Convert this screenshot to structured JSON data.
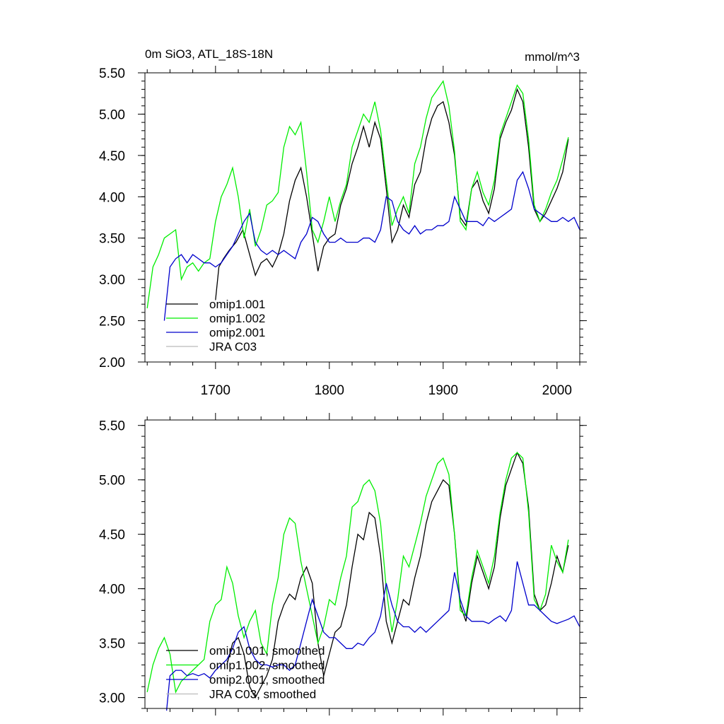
{
  "chart_data": [
    {
      "type": "line",
      "title": "0m SiO3, ATL_18S-18N",
      "units": "mmol/m^3",
      "xlim": [
        1638,
        2020
      ],
      "ylim": [
        2.0,
        5.5
      ],
      "xticks": [
        1700,
        1800,
        1900,
        2000
      ],
      "xtick_labels": [
        "1700",
        "1800",
        "1900",
        "2000"
      ],
      "yticks": [
        2.0,
        2.5,
        3.0,
        3.5,
        4.0,
        4.5,
        5.0,
        5.5
      ],
      "ytick_labels": [
        "2.00",
        "2.50",
        "3.00",
        "3.50",
        "4.00",
        "4.50",
        "5.00",
        "5.50"
      ],
      "legend_position": "lower-left",
      "series": [
        {
          "name": "omip1.001",
          "color": "#000000",
          "x": [
            1700,
            1703,
            1707,
            1712,
            1718,
            1724,
            1730,
            1735,
            1740,
            1745,
            1750,
            1755,
            1760,
            1765,
            1770,
            1775,
            1780,
            1785,
            1790,
            1795,
            1800,
            1805,
            1810,
            1815,
            1820,
            1825,
            1830,
            1835,
            1840,
            1845,
            1850,
            1855,
            1860,
            1865,
            1870,
            1875,
            1880,
            1885,
            1890,
            1895,
            1900,
            1905,
            1910,
            1915,
            1920,
            1925,
            1930,
            1935,
            1940,
            1945,
            1950,
            1955,
            1960,
            1965,
            1970,
            1975,
            1980,
            1985,
            1990,
            1995,
            2000,
            2005,
            2010
          ],
          "y": [
            2.75,
            3.15,
            3.25,
            3.35,
            3.45,
            3.6,
            3.3,
            3.05,
            3.2,
            3.25,
            3.15,
            3.3,
            3.55,
            3.95,
            4.2,
            4.35,
            4.0,
            3.55,
            3.1,
            3.4,
            3.5,
            3.55,
            3.9,
            4.1,
            4.4,
            4.6,
            4.85,
            4.6,
            4.9,
            4.7,
            4.1,
            3.45,
            3.6,
            3.9,
            3.75,
            4.15,
            4.3,
            4.7,
            4.95,
            5.1,
            5.15,
            4.9,
            4.5,
            3.75,
            3.65,
            4.1,
            4.2,
            3.95,
            3.8,
            4.1,
            4.7,
            4.9,
            5.05,
            5.3,
            5.15,
            4.6,
            3.85,
            3.7,
            3.8,
            3.95,
            4.1,
            4.3,
            4.7
          ]
        },
        {
          "name": "omip1.002",
          "color": "#00ee00",
          "x": [
            1640,
            1645,
            1650,
            1655,
            1660,
            1665,
            1670,
            1675,
            1680,
            1685,
            1690,
            1695,
            1700,
            1705,
            1710,
            1715,
            1720,
            1725,
            1730,
            1735,
            1740,
            1745,
            1750,
            1755,
            1760,
            1765,
            1770,
            1775,
            1780,
            1785,
            1790,
            1795,
            1800,
            1805,
            1810,
            1815,
            1820,
            1825,
            1830,
            1835,
            1840,
            1845,
            1850,
            1855,
            1860,
            1865,
            1870,
            1875,
            1880,
            1885,
            1890,
            1895,
            1900,
            1905,
            1910,
            1915,
            1920,
            1925,
            1930,
            1935,
            1940,
            1945,
            1950,
            1955,
            1960,
            1965,
            1970,
            1975,
            1980,
            1985,
            1990,
            1995,
            2000,
            2005,
            2010
          ],
          "y": [
            2.65,
            3.15,
            3.3,
            3.5,
            3.55,
            3.6,
            3.0,
            3.15,
            3.2,
            3.1,
            3.2,
            3.25,
            3.7,
            4.0,
            4.15,
            4.35,
            4.0,
            3.5,
            3.85,
            3.4,
            3.6,
            3.9,
            3.95,
            4.05,
            4.6,
            4.85,
            4.75,
            4.9,
            4.3,
            3.6,
            3.45,
            3.7,
            4.0,
            3.7,
            3.95,
            4.15,
            4.6,
            4.8,
            5.0,
            4.9,
            5.15,
            4.8,
            4.2,
            3.65,
            3.85,
            4.0,
            3.8,
            4.4,
            4.6,
            4.95,
            5.2,
            5.3,
            5.4,
            5.1,
            4.55,
            3.7,
            3.6,
            4.1,
            4.3,
            4.05,
            3.9,
            4.2,
            4.75,
            4.95,
            5.15,
            5.35,
            5.25,
            4.7,
            3.9,
            3.7,
            3.85,
            4.05,
            4.2,
            4.45,
            4.72
          ]
        },
        {
          "name": "omip2.001",
          "color": "#0000cc",
          "x": [
            1655,
            1660,
            1665,
            1670,
            1675,
            1680,
            1685,
            1690,
            1695,
            1700,
            1705,
            1710,
            1715,
            1720,
            1725,
            1730,
            1735,
            1740,
            1745,
            1750,
            1755,
            1760,
            1765,
            1770,
            1775,
            1780,
            1785,
            1790,
            1795,
            1800,
            1805,
            1810,
            1815,
            1820,
            1825,
            1830,
            1835,
            1840,
            1845,
            1850,
            1855,
            1860,
            1865,
            1870,
            1875,
            1880,
            1885,
            1890,
            1895,
            1900,
            1905,
            1910,
            1915,
            1920,
            1925,
            1930,
            1935,
            1940,
            1945,
            1950,
            1955,
            1960,
            1965,
            1970,
            1975,
            1980,
            1985,
            1990,
            1995,
            2000,
            2005,
            2010,
            2015,
            2020
          ],
          "y": [
            2.5,
            3.15,
            3.25,
            3.3,
            3.2,
            3.3,
            3.25,
            3.2,
            3.2,
            3.15,
            3.2,
            3.3,
            3.4,
            3.55,
            3.7,
            3.8,
            3.45,
            3.35,
            3.3,
            3.35,
            3.3,
            3.35,
            3.3,
            3.25,
            3.45,
            3.55,
            3.75,
            3.7,
            3.55,
            3.45,
            3.45,
            3.5,
            3.45,
            3.45,
            3.45,
            3.5,
            3.5,
            3.45,
            3.6,
            4.0,
            3.95,
            3.7,
            3.6,
            3.55,
            3.65,
            3.55,
            3.6,
            3.6,
            3.65,
            3.65,
            3.7,
            4.0,
            3.85,
            3.7,
            3.7,
            3.7,
            3.65,
            3.75,
            3.7,
            3.75,
            3.8,
            3.85,
            4.2,
            4.3,
            4.1,
            3.85,
            3.8,
            3.75,
            3.7,
            3.7,
            3.75,
            3.7,
            3.75,
            3.6
          ]
        },
        {
          "name": "JRA C03",
          "color": "#bbbbbb",
          "x": [],
          "y": []
        }
      ]
    },
    {
      "type": "line",
      "title": "",
      "xlim": [
        1638,
        2020
      ],
      "ylim": [
        2.9,
        5.55
      ],
      "xticks": [
        1700,
        1800,
        1900,
        2000
      ],
      "yticks": [
        3.0,
        3.5,
        4.0,
        4.5,
        5.0,
        5.5
      ],
      "ytick_labels": [
        "3.00",
        "3.50",
        "4.00",
        "4.50",
        "5.00",
        "5.50"
      ],
      "legend_position": "lower-left",
      "series": [
        {
          "name": "omip1.001, smoothed",
          "color": "#000000",
          "x": [
            1710,
            1715,
            1720,
            1725,
            1730,
            1735,
            1740,
            1745,
            1750,
            1755,
            1760,
            1765,
            1770,
            1775,
            1780,
            1785,
            1790,
            1795,
            1800,
            1805,
            1810,
            1815,
            1820,
            1825,
            1830,
            1835,
            1840,
            1845,
            1850,
            1855,
            1860,
            1865,
            1870,
            1875,
            1880,
            1885,
            1890,
            1895,
            1900,
            1905,
            1910,
            1915,
            1920,
            1925,
            1930,
            1935,
            1940,
            1945,
            1950,
            1955,
            1960,
            1965,
            1970,
            1975,
            1980,
            1985,
            1990,
            1995,
            2000,
            2005,
            2010
          ],
          "y": [
            3.3,
            3.5,
            3.55,
            3.4,
            3.1,
            3.0,
            3.1,
            3.2,
            3.35,
            3.7,
            3.85,
            3.95,
            3.9,
            4.1,
            4.2,
            4.05,
            3.5,
            3.2,
            3.4,
            3.6,
            3.65,
            3.85,
            4.2,
            4.5,
            4.45,
            4.7,
            4.65,
            4.3,
            3.7,
            3.5,
            3.7,
            3.9,
            3.85,
            4.1,
            4.3,
            4.6,
            4.8,
            4.9,
            5.0,
            4.95,
            4.5,
            3.85,
            3.7,
            4.05,
            4.3,
            4.15,
            4.0,
            4.2,
            4.65,
            4.95,
            5.1,
            5.25,
            5.15,
            4.75,
            3.95,
            3.8,
            3.85,
            4.05,
            4.3,
            4.15,
            4.4
          ]
        },
        {
          "name": "omip1.002, smoothed",
          "color": "#00ee00",
          "x": [
            1640,
            1645,
            1650,
            1655,
            1660,
            1665,
            1670,
            1675,
            1680,
            1685,
            1690,
            1695,
            1700,
            1705,
            1710,
            1715,
            1720,
            1725,
            1730,
            1735,
            1740,
            1745,
            1750,
            1755,
            1760,
            1765,
            1770,
            1775,
            1780,
            1785,
            1790,
            1795,
            1800,
            1805,
            1810,
            1815,
            1820,
            1825,
            1830,
            1835,
            1840,
            1845,
            1850,
            1855,
            1860,
            1865,
            1870,
            1875,
            1880,
            1885,
            1890,
            1895,
            1900,
            1905,
            1910,
            1915,
            1920,
            1925,
            1930,
            1935,
            1940,
            1945,
            1950,
            1955,
            1960,
            1965,
            1970,
            1975,
            1980,
            1985,
            1990,
            1995,
            2000,
            2005,
            2010
          ],
          "y": [
            3.05,
            3.3,
            3.45,
            3.55,
            3.4,
            3.05,
            3.15,
            3.2,
            3.25,
            3.3,
            3.35,
            3.7,
            3.85,
            3.9,
            4.2,
            4.05,
            3.75,
            3.55,
            3.7,
            3.8,
            3.5,
            3.4,
            3.85,
            4.1,
            4.5,
            4.65,
            4.6,
            4.25,
            4.0,
            3.75,
            3.5,
            3.65,
            3.9,
            3.85,
            4.1,
            4.3,
            4.75,
            4.8,
            4.95,
            5.0,
            4.9,
            4.6,
            4.0,
            3.6,
            3.9,
            4.3,
            4.2,
            4.4,
            4.6,
            4.85,
            5.0,
            5.15,
            5.2,
            5.05,
            4.5,
            3.8,
            3.75,
            4.1,
            4.35,
            4.2,
            4.05,
            4.3,
            4.7,
            5.0,
            5.2,
            5.25,
            5.2,
            4.7,
            3.9,
            3.8,
            3.95,
            4.4,
            4.25,
            4.15,
            4.45
          ]
        },
        {
          "name": "omip2.001, smoothed",
          "color": "#0000cc",
          "x": [
            1657,
            1660,
            1665,
            1670,
            1675,
            1680,
            1685,
            1690,
            1695,
            1700,
            1705,
            1710,
            1715,
            1720,
            1725,
            1730,
            1735,
            1740,
            1745,
            1750,
            1755,
            1760,
            1765,
            1770,
            1775,
            1780,
            1785,
            1790,
            1795,
            1800,
            1805,
            1810,
            1815,
            1820,
            1825,
            1830,
            1835,
            1840,
            1845,
            1850,
            1855,
            1860,
            1865,
            1870,
            1875,
            1880,
            1885,
            1890,
            1895,
            1900,
            1905,
            1910,
            1915,
            1920,
            1925,
            1930,
            1935,
            1940,
            1945,
            1950,
            1955,
            1960,
            1965,
            1970,
            1975,
            1980,
            1985,
            1990,
            1995,
            2000,
            2005,
            2010,
            2015,
            2020
          ],
          "y": [
            2.88,
            3.2,
            3.25,
            3.25,
            3.2,
            3.22,
            3.2,
            3.22,
            3.18,
            3.25,
            3.3,
            3.35,
            3.45,
            3.6,
            3.65,
            3.45,
            3.35,
            3.3,
            3.3,
            3.28,
            3.3,
            3.3,
            3.25,
            3.3,
            3.5,
            3.7,
            3.9,
            3.75,
            3.6,
            3.55,
            3.55,
            3.5,
            3.45,
            3.45,
            3.5,
            3.48,
            3.55,
            3.6,
            3.75,
            4.05,
            3.85,
            3.7,
            3.65,
            3.65,
            3.6,
            3.65,
            3.6,
            3.65,
            3.7,
            3.75,
            3.8,
            4.15,
            3.9,
            3.75,
            3.7,
            3.7,
            3.7,
            3.68,
            3.72,
            3.75,
            3.7,
            3.8,
            4.25,
            4.05,
            3.85,
            3.85,
            3.8,
            3.75,
            3.7,
            3.68,
            3.7,
            3.72,
            3.75,
            3.65
          ]
        },
        {
          "name": "JRA C03, smoothed",
          "color": "#bbbbbb",
          "x": [],
          "y": []
        }
      ]
    }
  ]
}
